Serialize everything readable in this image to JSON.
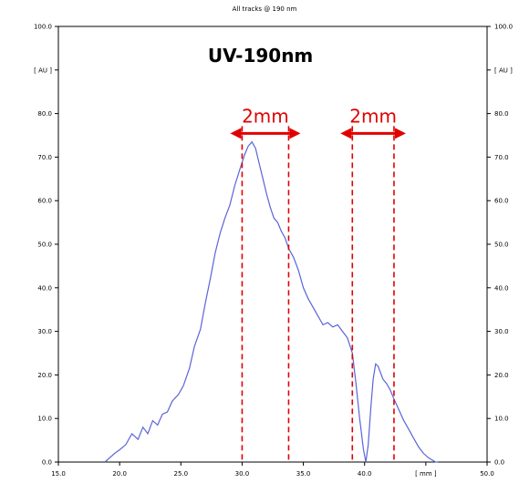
{
  "chart_data": {
    "type": "line",
    "title": "All tracks @ 190 nm",
    "ylabel": "[ AU ]",
    "xlabel": "[ mm ]",
    "xlim": [
      15.0,
      50.0
    ],
    "ylim": [
      0.0,
      100.0
    ],
    "x_ticks": [
      "15.0",
      "20.0",
      "25.0",
      "30.0",
      "35.0",
      "40.0",
      "[ mm ]",
      "50.0"
    ],
    "x_tick_values": [
      15,
      20,
      25,
      30,
      35,
      40,
      45,
      50
    ],
    "y_ticks": [
      "0.0",
      "10.0",
      "20.0",
      "30.0",
      "40.0",
      "50.0",
      "60.0",
      "70.0",
      "80.0",
      "[ AU ]",
      "100.0"
    ],
    "y_tick_values": [
      0,
      10,
      20,
      30,
      40,
      50,
      60,
      70,
      80,
      90,
      100
    ],
    "grid": false,
    "series": [
      {
        "color": "#5a64d8",
        "x": [
          18.8,
          19.2,
          19.6,
          20.0,
          20.5,
          21.0,
          21.5,
          21.9,
          22.3,
          22.7,
          23.1,
          23.5,
          23.9,
          24.3,
          24.8,
          25.2,
          25.7,
          26.1,
          26.6,
          27.0,
          27.4,
          27.8,
          28.2,
          28.6,
          29.0,
          29.4,
          29.8,
          30.2,
          30.5,
          30.8,
          31.1,
          31.4,
          31.7,
          32.0,
          32.3,
          32.6,
          32.9,
          33.2,
          33.5,
          33.8,
          34.2,
          34.6,
          35.0,
          35.4,
          35.8,
          36.2,
          36.6,
          37.0,
          37.4,
          37.8,
          38.2,
          38.6,
          39.0,
          39.3,
          39.6,
          39.9,
          40.1,
          40.3,
          40.5,
          40.7,
          40.9,
          41.1,
          41.3,
          41.5,
          41.8,
          42.1,
          42.4,
          42.8,
          43.2,
          43.6,
          44.0,
          44.4,
          44.8,
          45.2,
          45.5,
          45.8,
          46.0
        ],
        "y": [
          0.0,
          1.0,
          2.0,
          2.8,
          4.0,
          6.5,
          5.2,
          8.0,
          6.5,
          9.5,
          8.5,
          11.0,
          11.5,
          14.0,
          15.5,
          17.5,
          21.5,
          26.5,
          30.5,
          36.5,
          42.0,
          48.0,
          52.5,
          56.0,
          59.0,
          63.5,
          67.0,
          70.5,
          72.5,
          73.5,
          72.0,
          68.5,
          65.0,
          61.5,
          58.5,
          56.0,
          55.0,
          53.0,
          51.5,
          49.0,
          47.0,
          44.0,
          40.0,
          37.5,
          35.5,
          33.5,
          31.5,
          32.0,
          31.0,
          31.5,
          30.0,
          28.5,
          25.0,
          18.0,
          10.0,
          3.0,
          0.0,
          4.0,
          12.0,
          19.0,
          22.5,
          22.0,
          20.5,
          19.0,
          18.0,
          16.5,
          14.5,
          12.0,
          9.5,
          7.5,
          5.5,
          3.5,
          2.0,
          1.0,
          0.5,
          0.0,
          0.0
        ]
      }
    ],
    "annotations": [
      {
        "text": "UV-190nm"
      },
      {
        "text": "2mm",
        "x_from": 30.0,
        "x_to": 33.8,
        "y": 70.0
      },
      {
        "text": "2mm",
        "x_from": 39.0,
        "x_to": 42.4,
        "y": 70.0
      }
    ],
    "right_axis_ticks": [
      "0.0",
      "10.0",
      "20.0",
      "30.0",
      "40.0",
      "50.0",
      "60.0",
      "70.0",
      "80.0",
      "[ AU ]",
      "100.0"
    ],
    "colors": {
      "line": "#5a64d8",
      "annotation": "#e00000",
      "frame": "#000000"
    }
  }
}
